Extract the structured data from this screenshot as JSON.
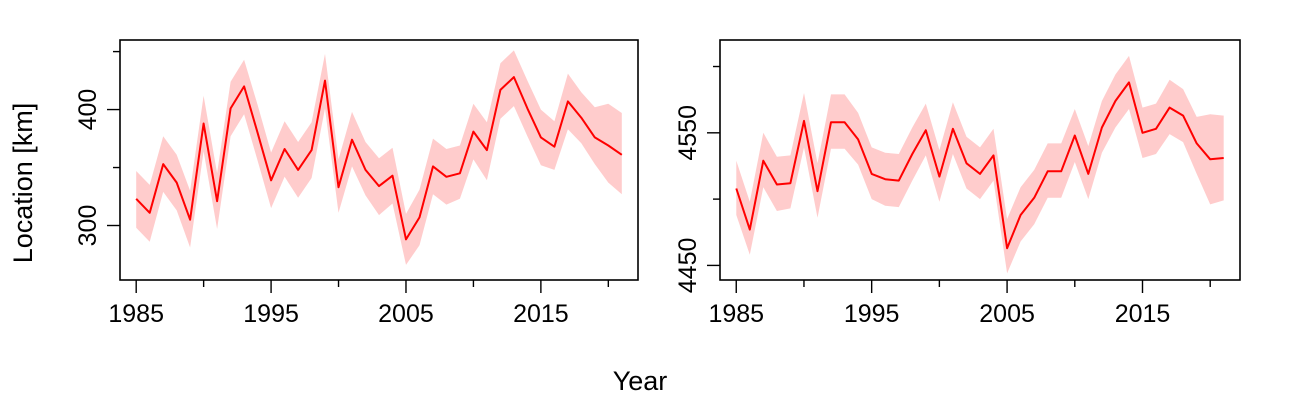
{
  "figure": {
    "xlabel": "Year",
    "ylabel": "Location [km]"
  },
  "colors": {
    "line": "#ff0000",
    "band": "#ffcccc",
    "axis": "#000000"
  },
  "chart_data": [
    {
      "type": "line",
      "title": "",
      "xlabel": "",
      "ylabel": "",
      "xlim": [
        1983.8,
        2022.2
      ],
      "ylim": [
        253,
        460
      ],
      "x_ticks": [
        1985,
        1995,
        2005,
        2015
      ],
      "x_tick_labels": [
        "1985",
        "1995",
        "2005",
        "2015"
      ],
      "y_ticks": [
        300,
        400
      ],
      "y_tick_labels": [
        "300",
        "400"
      ],
      "grid": false,
      "legend": "none",
      "series": [
        {
          "x": [
            1985,
            1986,
            1987,
            1988,
            1989,
            1990,
            1991,
            1992,
            1993,
            1994,
            1995,
            1996,
            1997,
            1998,
            1999,
            2000,
            2001,
            2002,
            2003,
            2004,
            2005,
            2006,
            2007,
            2008,
            2009,
            2010,
            2011,
            2012,
            2013,
            2014,
            2015,
            2016,
            2017,
            2018,
            2019,
            2020,
            2021
          ],
          "y": [
            323,
            311,
            353,
            337,
            305,
            388,
            321,
            401,
            420,
            380,
            339,
            366,
            348,
            365,
            425,
            333,
            374,
            348,
            334,
            343,
            288,
            307,
            351,
            342,
            345,
            381,
            365,
            417,
            428,
            401,
            376,
            368,
            407,
            393,
            376,
            369,
            361
          ],
          "lower": [
            298,
            286,
            329,
            313,
            281,
            364,
            297,
            377,
            396,
            356,
            315,
            342,
            324,
            341,
            401,
            311,
            351,
            326,
            309,
            319,
            266,
            283,
            327,
            318,
            323,
            357,
            339,
            392,
            403,
            377,
            352,
            348,
            383,
            371,
            353,
            337,
            327
          ],
          "upper": [
            347,
            335,
            377,
            361,
            330,
            412,
            345,
            424,
            443,
            404,
            363,
            390,
            372,
            389,
            448,
            357,
            398,
            372,
            358,
            367,
            310,
            331,
            375,
            366,
            369,
            405,
            389,
            440,
            451,
            425,
            400,
            390,
            431,
            415,
            402,
            405,
            397
          ]
        }
      ]
    },
    {
      "type": "line",
      "title": "",
      "xlabel": "",
      "ylabel": "",
      "xlim": [
        1983.8,
        2022.2
      ],
      "ylim": [
        4439,
        4620
      ],
      "x_ticks": [
        1985,
        1995,
        2005,
        2015
      ],
      "x_tick_labels": [
        "1985",
        "1995",
        "2005",
        "2015"
      ],
      "y_ticks": [
        4450,
        4550
      ],
      "y_tick_labels": [
        "4450",
        "4550"
      ],
      "grid": false,
      "legend": "none",
      "series": [
        {
          "x": [
            1985,
            1986,
            1987,
            1988,
            1989,
            1990,
            1991,
            1992,
            1993,
            1994,
            1995,
            1996,
            1997,
            1998,
            1999,
            2000,
            2001,
            2002,
            2003,
            2004,
            2005,
            2006,
            2007,
            2008,
            2009,
            2010,
            2011,
            2012,
            2013,
            2014,
            2015,
            2016,
            2017,
            2018,
            2019,
            2020,
            2021
          ],
          "y": [
            4508,
            4477,
            4529,
            4511,
            4512,
            4559,
            4506,
            4558,
            4558,
            4545,
            4519,
            4515,
            4514,
            4534,
            4552,
            4517,
            4553,
            4527,
            4519,
            4533,
            4463,
            4488,
            4501,
            4521,
            4521,
            4548,
            4519,
            4554,
            4574,
            4588,
            4550,
            4553,
            4569,
            4563,
            4542,
            4530,
            4531
          ],
          "lower": [
            4488,
            4458,
            4509,
            4491,
            4493,
            4539,
            4486,
            4538,
            4538,
            4526,
            4500,
            4495,
            4494,
            4514,
            4533,
            4498,
            4534,
            4508,
            4500,
            4514,
            4444,
            4468,
            4481,
            4501,
            4501,
            4528,
            4500,
            4535,
            4554,
            4568,
            4531,
            4534,
            4549,
            4543,
            4519,
            4496,
            4499
          ],
          "upper": [
            4529,
            4498,
            4550,
            4532,
            4533,
            4580,
            4527,
            4579,
            4579,
            4565,
            4539,
            4535,
            4534,
            4554,
            4572,
            4537,
            4573,
            4547,
            4539,
            4553,
            4485,
            4509,
            4522,
            4542,
            4542,
            4568,
            4540,
            4574,
            4594,
            4608,
            4569,
            4572,
            4590,
            4583,
            4562,
            4564,
            4563
          ]
        }
      ]
    }
  ]
}
